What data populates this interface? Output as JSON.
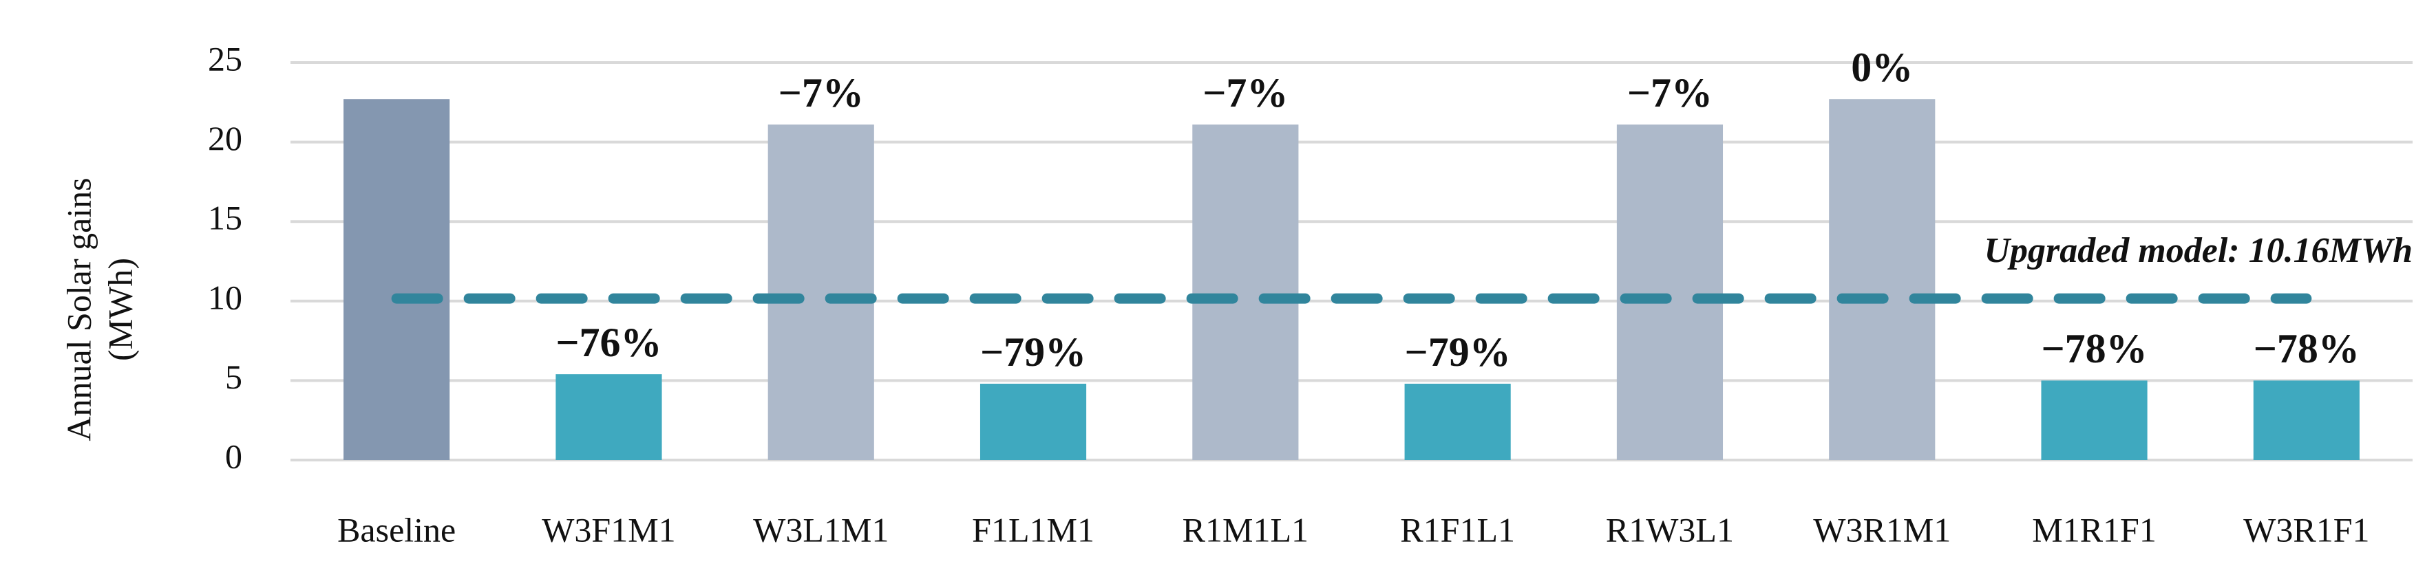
{
  "chart_data": {
    "type": "bar",
    "y_label": [
      "Annual Solar gains",
      "(MWh)"
    ],
    "categories": [
      "Baseline",
      "W3F1M1",
      "W3L1M1",
      "F1L1M1",
      "R1M1L1",
      "R1F1L1",
      "R1W3L1",
      "W3R1M1",
      "M1R1F1",
      "W3R1F1"
    ],
    "values": [
      22.7,
      5.4,
      21.1,
      4.8,
      21.1,
      4.8,
      21.1,
      22.7,
      5.0,
      5.0
    ],
    "change_labels": [
      null,
      "−76%",
      "−7%",
      "−79%",
      "−7%",
      "−79%",
      "−7%",
      "0%",
      "−78%",
      "−78%"
    ],
    "colors": [
      "#8497b0",
      "#3fa9bf",
      "#adb9ca",
      "#3fa9bf",
      "#adb9ca",
      "#3fa9bf",
      "#adb9ca",
      "#adb9ca",
      "#3fa9bf",
      "#3fa9bf"
    ],
    "reference_line": {
      "value": 10.16,
      "label": "Upgraded model: 10.16MWh",
      "color": "#31859c"
    },
    "ylim": [
      0,
      25
    ],
    "yticks": [
      0,
      5,
      10,
      15,
      20,
      25
    ],
    "grid": true
  }
}
